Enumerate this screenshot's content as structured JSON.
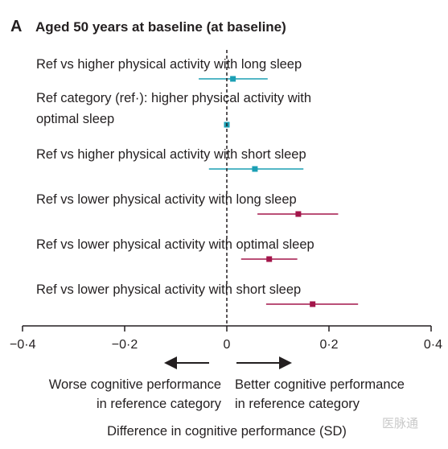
{
  "panel_letter": "A",
  "panel_title": "Aged 50 years at baseline (at baseline)",
  "chart_data": {
    "type": "forest",
    "title": "Aged 50 years at baseline (at baseline)",
    "xlabel": "Difference in cognitive performance (SD)",
    "xlim": [
      -0.4,
      0.4
    ],
    "xticks": [
      -0.4,
      -0.2,
      0,
      0.2,
      0.4
    ],
    "xtick_labels": [
      "−0·4",
      "−0·2",
      "0",
      "0·2",
      "0·4"
    ],
    "reference_line": 0,
    "rows": [
      {
        "label_lines": [
          "Ref vs higher physical activity with long sleep"
        ],
        "estimate": 0.012,
        "ci": [
          -0.055,
          0.08
        ],
        "color": "#1b9fb4",
        "marker": "square"
      },
      {
        "label_lines": [
          "Ref category (ref·): higher physical activity with",
          "optimal sleep"
        ],
        "estimate": 0.0,
        "ci": [
          0.0,
          0.0
        ],
        "color": "#1b9fb4",
        "marker": "square"
      },
      {
        "label_lines": [
          "Ref vs higher physical activity with short sleep"
        ],
        "estimate": 0.055,
        "ci": [
          -0.035,
          0.15
        ],
        "color": "#1b9fb4",
        "marker": "square"
      },
      {
        "label_lines": [
          "Ref vs lower physical activity with long sleep"
        ],
        "estimate": 0.14,
        "ci": [
          0.06,
          0.218
        ],
        "color": "#a3154a",
        "marker": "square"
      },
      {
        "label_lines": [
          "Ref vs lower physical activity with optimal sleep"
        ],
        "estimate": 0.083,
        "ci": [
          0.028,
          0.138
        ],
        "color": "#a3154a",
        "marker": "square"
      },
      {
        "label_lines": [
          "Ref vs lower physical activity with short sleep"
        ],
        "estimate": 0.168,
        "ci": [
          0.077,
          0.257
        ],
        "color": "#a3154a",
        "marker": "square"
      }
    ],
    "direction_left_lines": [
      "Worse cognitive performance",
      "in reference category"
    ],
    "direction_right_lines": [
      "Better cognitive performance",
      "in reference category"
    ]
  },
  "watermark": "医脉通"
}
